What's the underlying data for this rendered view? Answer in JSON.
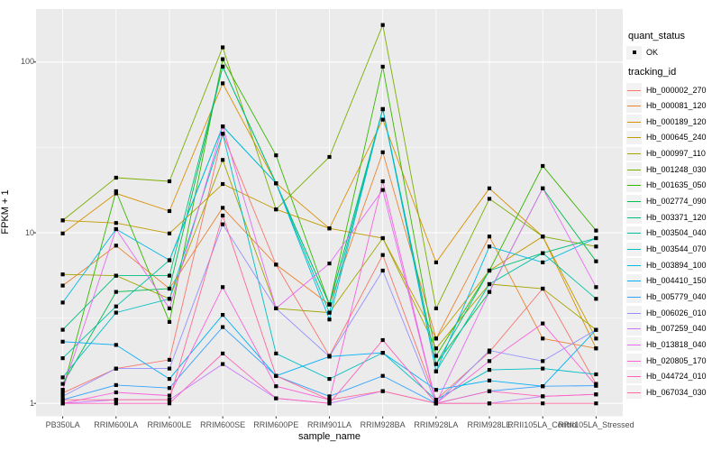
{
  "chart_data": {
    "type": "line",
    "title": "",
    "xlabel": "sample_name",
    "ylabel": "FPKM + 1",
    "y_scale": "log10",
    "y_ticks": [
      1,
      10,
      100
    ],
    "y_minor_ticks": [
      3.1623,
      31.623
    ],
    "ylim": [
      1,
      170
    ],
    "grid": true,
    "legend_position": "right",
    "point_marker": "small black square",
    "categories": [
      "PB350LA",
      "RRIM600LA",
      "RRIM600LE",
      "RRIM600SE",
      "RRIM600PE",
      "RRIM901LA",
      "RRIM928BA",
      "RRIM928LA",
      "RRIM928LE",
      "RRII105LA_Control",
      "RRII105LA_Stressed"
    ],
    "series": [
      {
        "name": "Hb_000002_270",
        "color": "#F8766D",
        "values": [
          1.15,
          1.6,
          1.8,
          38,
          6.5,
          1.9,
          7.4,
          1.05,
          2.0,
          4.7,
          1.3
        ]
      },
      {
        "name": "Hb_000081_120",
        "color": "#EA8331",
        "values": [
          4.9,
          8.4,
          4.7,
          14,
          6.5,
          3.8,
          29.6,
          2.4,
          9.5,
          2.4,
          2.1
        ]
      },
      {
        "name": "Hb_000189_120",
        "color": "#D89000",
        "values": [
          9.9,
          17,
          13.4,
          75,
          19.5,
          10.6,
          46,
          6.7,
          18.2,
          9.5,
          2.1
        ]
      },
      {
        "name": "Hb_000645_240",
        "color": "#C09B00",
        "values": [
          11.8,
          11.4,
          9.9,
          19.3,
          13.7,
          10.6,
          9.3,
          2.4,
          6.0,
          9.5,
          2.4
        ]
      },
      {
        "name": "Hb_000997_110",
        "color": "#A3A500",
        "values": [
          5.7,
          5.6,
          4.1,
          26.7,
          3.6,
          3.4,
          9.3,
          2.1,
          5.0,
          4.7,
          2.7
        ]
      },
      {
        "name": "Hb_001248_030",
        "color": "#7CAE00",
        "values": [
          11.8,
          21,
          20,
          122,
          13.7,
          27.8,
          165,
          3.6,
          15.8,
          9.5,
          8.3
        ]
      },
      {
        "name": "Hb_001635_050",
        "color": "#39B600",
        "values": [
          1.2,
          17.5,
          3.0,
          104,
          28.4,
          3.8,
          94,
          1.9,
          6.0,
          24.6,
          10.3
        ]
      },
      {
        "name": "Hb_002774_090",
        "color": "#00BB4E",
        "values": [
          1.3,
          4.5,
          4.7,
          94,
          19.5,
          3.8,
          53,
          1.7,
          4.5,
          18.2,
          6.8
        ]
      },
      {
        "name": "Hb_003371_120",
        "color": "#00BF7D",
        "values": [
          2.7,
          5.6,
          5.6,
          94,
          19.5,
          3.8,
          53,
          1.7,
          6.0,
          7.6,
          9.3
        ]
      },
      {
        "name": "Hb_003504_040",
        "color": "#00C1A3",
        "values": [
          1.84,
          3.7,
          6.9,
          42,
          19.5,
          3.4,
          53,
          1.54,
          5.0,
          7.6,
          4.1
        ]
      },
      {
        "name": "Hb_003544_070",
        "color": "#00BFC4",
        "values": [
          1.42,
          3.4,
          4.1,
          38,
          1.96,
          1.39,
          1.98,
          1.05,
          1.57,
          1.6,
          1.48
        ]
      },
      {
        "name": "Hb_003894_100",
        "color": "#00BAE0",
        "values": [
          3.9,
          10.5,
          6.9,
          42,
          19.5,
          3.1,
          53,
          1.54,
          8.3,
          6.7,
          9.3
        ]
      },
      {
        "name": "Hb_004410_150",
        "color": "#00B0F6",
        "values": [
          2.3,
          2.2,
          1.39,
          3.3,
          1.45,
          1.88,
          1.98,
          1.2,
          1.36,
          1.26,
          2.7
        ]
      },
      {
        "name": "Hb_005779_040",
        "color": "#35A2FF",
        "values": [
          1.05,
          1.28,
          1.23,
          2.8,
          1.45,
          1.1,
          1.45,
          1.0,
          1.18,
          1.26,
          1.27
        ]
      },
      {
        "name": "Hb_006026_010",
        "color": "#9590FF",
        "values": [
          1.1,
          1.6,
          1.6,
          11.2,
          3.6,
          1.88,
          6.0,
          1.0,
          2.04,
          1.77,
          2.7
        ]
      },
      {
        "name": "Hb_007259_040",
        "color": "#C77CFF",
        "values": [
          1.0,
          1.05,
          1.05,
          1.7,
          1.07,
          1.0,
          1.18,
          1.0,
          1.0,
          1.1,
          1.13
        ]
      },
      {
        "name": "Hb_013818_040",
        "color": "#E76BF3",
        "values": [
          1.2,
          10.5,
          3.6,
          42,
          3.6,
          6.6,
          17.8,
          1.0,
          4.5,
          18.2,
          4.8
        ]
      },
      {
        "name": "Hb_020805_170",
        "color": "#FA62DB",
        "values": [
          1.0,
          1.16,
          1.11,
          4.8,
          1.26,
          1.05,
          20,
          1.0,
          1.77,
          2.94,
          1.27
        ]
      },
      {
        "name": "Hb_044724_010",
        "color": "#FF62BC",
        "values": [
          1.0,
          1.0,
          1.0,
          1.96,
          1.07,
          1.0,
          2.35,
          1.0,
          1.18,
          1.1,
          1.13
        ]
      },
      {
        "name": "Hb_067034_030",
        "color": "#FF6A98",
        "values": [
          1.05,
          1.05,
          1.05,
          12.6,
          1.45,
          1.05,
          1.18,
          1.0,
          1.0,
          1.0,
          1.0
        ]
      }
    ]
  },
  "legend": {
    "quant_status_title": "quant_status",
    "quant_status_items": [
      {
        "label": "OK",
        "marker": "black-point"
      }
    ],
    "tracking_title": "tracking_id"
  },
  "colors": {
    "panel_bg": "#EBEBEB",
    "grid": "#FFFFFF",
    "tick_text": "#4D4D4D",
    "axis_text": "#000000",
    "point": "#000000",
    "legend_key_bg": "#F2F2F2"
  }
}
